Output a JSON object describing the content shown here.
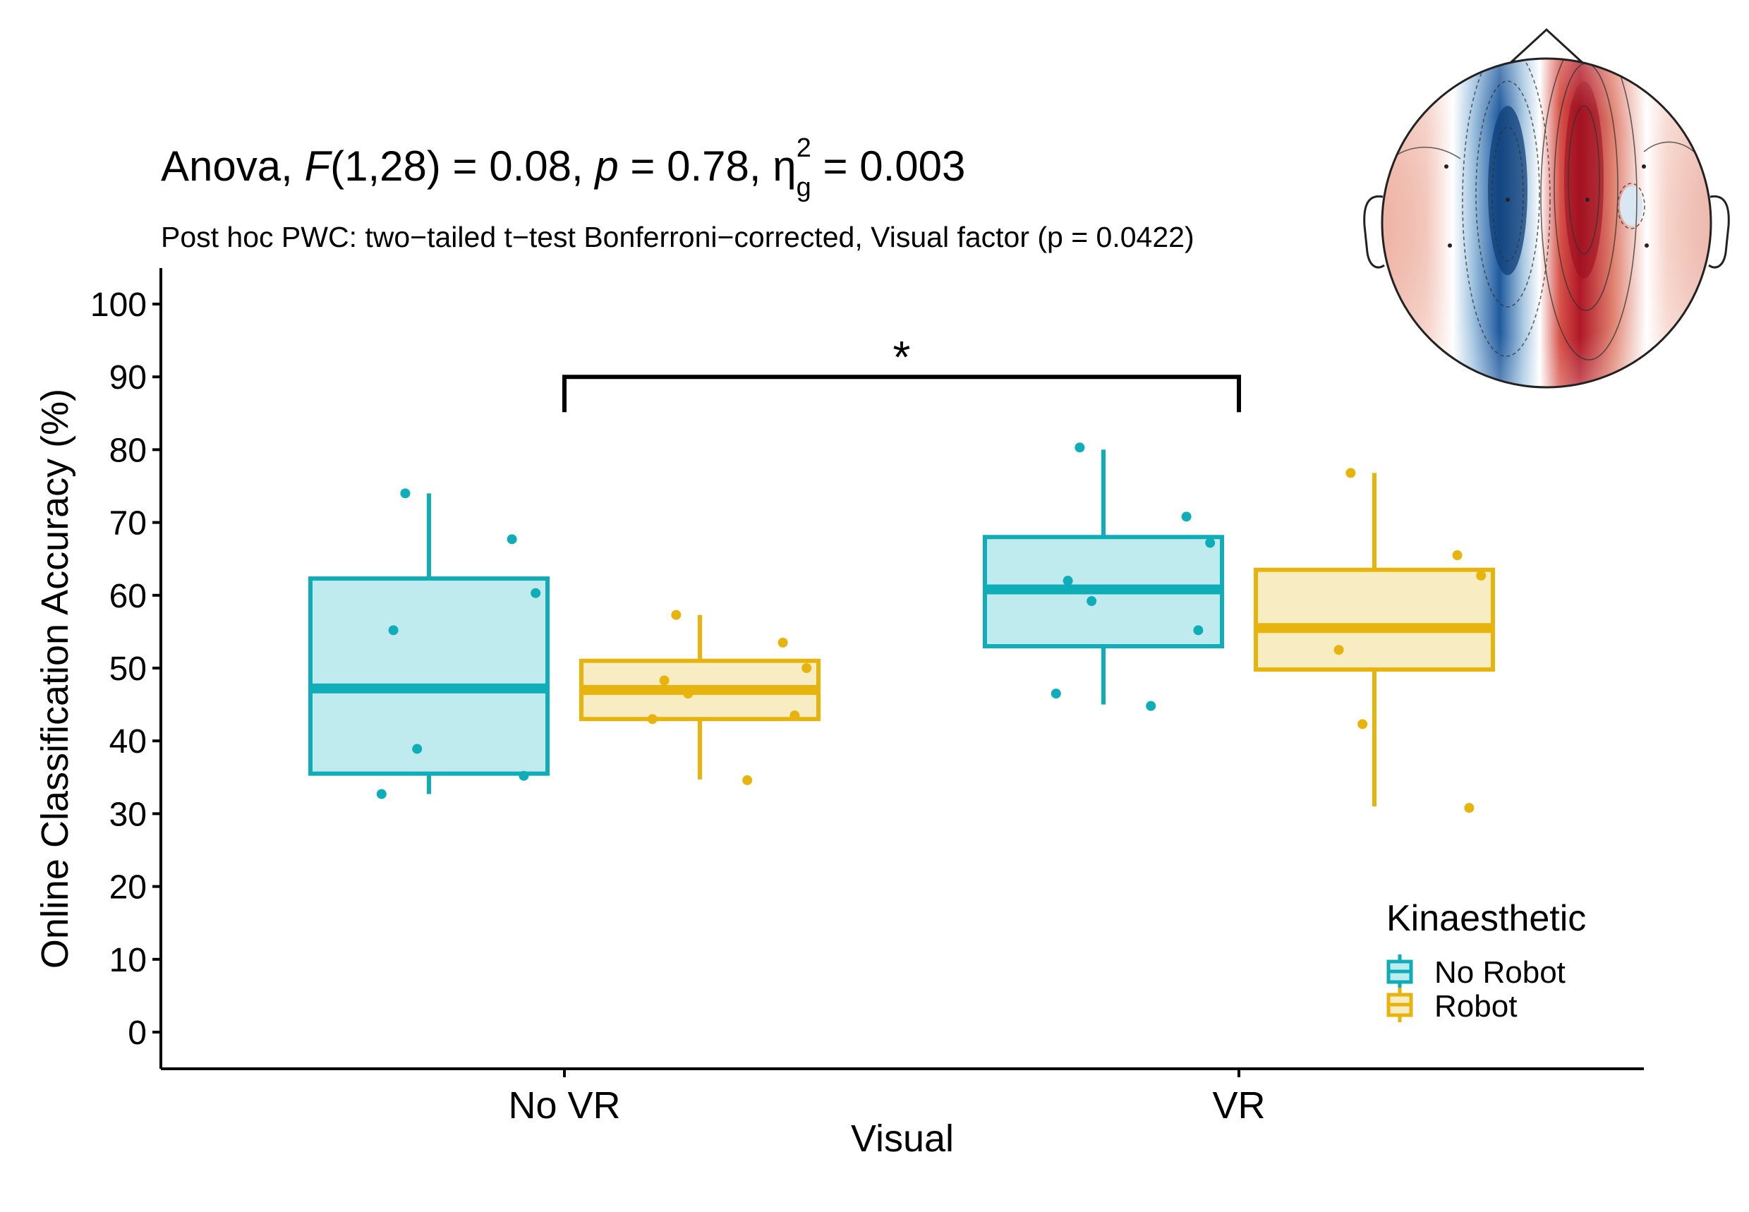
{
  "chart_data": {
    "type": "boxplot",
    "title": {
      "prefix": "Anova, ",
      "f_symbol": "F",
      "df": "(1,28) = 0.08, ",
      "p_symbol": "p",
      "p_value": " = 0.78, ",
      "eta_symbol": "η",
      "eta_sub": "g",
      "eta_sup": "2",
      "eta_value": " = 0.003"
    },
    "subtitle": "Post hoc PWC: two−tailed t−test Bonferroni−corrected, Visual factor (p = 0.0422)",
    "xlabel": "Visual",
    "ylabel": "Online Classification Accuracy (%)",
    "ylim": [
      -5,
      105
    ],
    "yticks": [
      "0",
      "10",
      "20",
      "30",
      "40",
      "50",
      "60",
      "70",
      "80",
      "90",
      "100"
    ],
    "categories": [
      "No VR",
      "VR"
    ],
    "legend": {
      "title": "Kinaesthetic",
      "position": "bottom-right",
      "entries": [
        "No Robot",
        "Robot"
      ]
    },
    "significance": {
      "label": "*",
      "from": "No VR",
      "to": "VR",
      "y": 90
    },
    "series": [
      {
        "name": "No Robot",
        "color": "#0fadb8",
        "fill": "#bfeaee",
        "boxes": [
          {
            "category": "No VR",
            "min": 32.7,
            "q1": 35.5,
            "median": 47.2,
            "q3": 62.3,
            "max": 74.0,
            "points": [
              74.0,
              67.7,
              60.3,
              55.2,
              38.9,
              35.2,
              32.7
            ]
          },
          {
            "category": "VR",
            "min": 45.0,
            "q1": 53.0,
            "median": 60.8,
            "q3": 68.0,
            "max": 80.0,
            "points": [
              80.3,
              70.8,
              67.2,
              62.0,
              59.2,
              55.2,
              46.5,
              44.8
            ]
          }
        ]
      },
      {
        "name": "Robot",
        "color": "#e6b40c",
        "fill": "#f8ecc2",
        "boxes": [
          {
            "category": "No VR",
            "min": 34.7,
            "q1": 43.0,
            "median": 47.0,
            "q3": 51.0,
            "max": 57.3,
            "points": [
              57.3,
              53.5,
              50.0,
              48.3,
              46.5,
              43.5,
              43.0,
              34.6
            ]
          },
          {
            "category": "VR",
            "min": 31.0,
            "q1": 49.8,
            "median": 55.5,
            "q3": 63.5,
            "max": 76.8,
            "points": [
              76.8,
              65.5,
              62.7,
              52.5,
              42.3,
              30.8
            ]
          }
        ]
      }
    ]
  },
  "inset": {
    "description": "topoplot"
  }
}
